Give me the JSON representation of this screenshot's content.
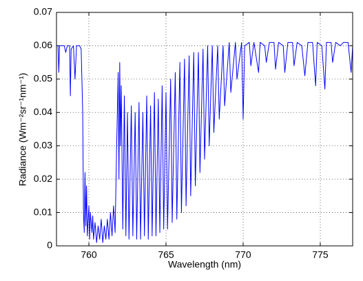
{
  "chart_data": {
    "type": "line",
    "xlabel": "Wavelength (nm)",
    "ylabel": "Radiance (Wm⁻²sr⁻¹nm⁻¹)",
    "x": [
      757.9,
      758.0,
      758.05,
      758.1,
      758.4,
      758.5,
      758.6,
      758.75,
      758.8,
      758.85,
      759.0,
      759.1,
      759.2,
      759.4,
      759.5,
      759.6,
      759.65,
      759.7,
      759.75,
      759.8,
      759.85,
      759.9,
      760.0,
      760.05,
      760.1,
      760.2,
      760.25,
      760.3,
      760.4,
      760.5,
      760.6,
      760.7,
      760.8,
      760.9,
      761.0,
      761.1,
      761.2,
      761.3,
      761.4,
      761.5,
      761.6,
      761.7,
      761.8,
      761.9,
      761.95,
      762.0,
      762.05,
      762.1,
      762.2,
      762.3,
      762.4,
      762.5,
      762.6,
      762.75,
      762.85,
      763.0,
      763.1,
      763.25,
      763.35,
      763.5,
      763.6,
      763.75,
      763.85,
      764.0,
      764.1,
      764.25,
      764.35,
      764.5,
      764.6,
      764.75,
      764.85,
      765.0,
      765.1,
      765.3,
      765.4,
      765.6,
      765.7,
      765.9,
      766.0,
      766.2,
      766.3,
      766.5,
      766.6,
      766.8,
      766.9,
      767.1,
      767.2,
      767.4,
      767.5,
      767.7,
      767.8,
      768.0,
      768.1,
      768.35,
      768.45,
      768.7,
      768.8,
      769.1,
      769.2,
      769.5,
      769.6,
      769.9,
      770.0,
      770.1,
      770.4,
      770.5,
      770.7,
      771.0,
      771.1,
      771.4,
      771.5,
      771.7,
      772.0,
      772.1,
      772.3,
      772.6,
      772.7,
      772.9,
      773.2,
      773.3,
      773.5,
      773.8,
      774.0,
      774.2,
      774.5,
      774.7,
      774.8,
      775.1,
      775.3,
      775.4,
      775.7,
      775.8,
      776.0,
      776.3,
      776.5,
      776.8,
      777.0,
      777.1
    ],
    "series": [
      {
        "color": "#0000ff",
        "values": [
          0.06,
          0.06,
          0.052,
          0.06,
          0.06,
          0.058,
          0.06,
          0.06,
          0.045,
          0.059,
          0.06,
          0.05,
          0.06,
          0.06,
          0.059,
          0.04,
          0.01,
          0.004,
          0.022,
          0.006,
          0.018,
          0.003,
          0.012,
          0.002,
          0.01,
          0.004,
          0.009,
          0.002,
          0.007,
          0.001,
          0.006,
          0.002,
          0.008,
          0.001,
          0.006,
          0.002,
          0.008,
          0.002,
          0.01,
          0.003,
          0.012,
          0.004,
          0.03,
          0.052,
          0.02,
          0.055,
          0.03,
          0.048,
          0.005,
          0.045,
          0.003,
          0.04,
          0.002,
          0.042,
          0.003,
          0.04,
          0.002,
          0.043,
          0.002,
          0.04,
          0.003,
          0.045,
          0.002,
          0.042,
          0.003,
          0.046,
          0.003,
          0.044,
          0.004,
          0.048,
          0.005,
          0.046,
          0.005,
          0.05,
          0.007,
          0.052,
          0.008,
          0.055,
          0.01,
          0.056,
          0.012,
          0.057,
          0.015,
          0.058,
          0.018,
          0.058,
          0.022,
          0.059,
          0.026,
          0.06,
          0.03,
          0.06,
          0.034,
          0.06,
          0.038,
          0.06,
          0.042,
          0.061,
          0.046,
          0.061,
          0.05,
          0.061,
          0.038,
          0.06,
          0.061,
          0.054,
          0.061,
          0.052,
          0.061,
          0.06,
          0.055,
          0.061,
          0.061,
          0.053,
          0.061,
          0.06,
          0.052,
          0.061,
          0.061,
          0.054,
          0.061,
          0.06,
          0.051,
          0.061,
          0.061,
          0.048,
          0.061,
          0.06,
          0.047,
          0.061,
          0.061,
          0.055,
          0.061,
          0.06,
          0.061,
          0.061,
          0.052,
          0.06
        ]
      }
    ],
    "xlim": [
      757.9,
      777.1
    ],
    "xticks": [
      760,
      765,
      770,
      775
    ],
    "ylim": [
      0,
      0.07
    ],
    "yticks": [
      0,
      0.01,
      0.02,
      0.03,
      0.04,
      0.05,
      0.06,
      0.07
    ],
    "grid": true
  }
}
